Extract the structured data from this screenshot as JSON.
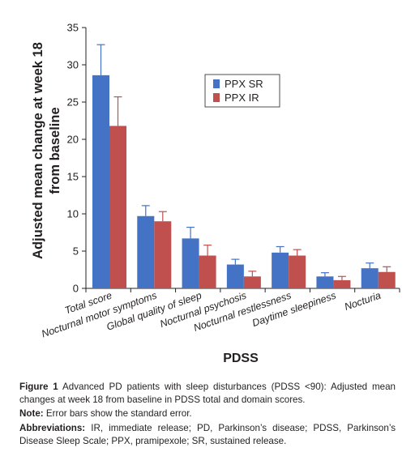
{
  "chart_data": {
    "type": "bar",
    "categories": [
      "Total score",
      "Nocturnal motor symptoms",
      "Global quality of sleep",
      "Nocturnal psychosis",
      "Nocturnal restlessness",
      "Daytime sleepiness",
      "Nocturia"
    ],
    "series": [
      {
        "name": "PPX SR",
        "color": "#4472c4",
        "values": [
          28.6,
          9.7,
          6.7,
          3.2,
          4.8,
          1.6,
          2.7
        ],
        "errors": [
          4.1,
          1.4,
          1.5,
          0.7,
          0.8,
          0.5,
          0.7
        ]
      },
      {
        "name": "PPX IR",
        "color": "#c0504d",
        "values": [
          21.8,
          9.0,
          4.4,
          1.6,
          4.4,
          1.1,
          2.2
        ],
        "errors": [
          3.9,
          1.3,
          1.4,
          0.7,
          0.8,
          0.5,
          0.7
        ]
      }
    ],
    "xlabel": "PDSS",
    "ylabel_lines": [
      "Adjusted mean change at week 18",
      "from baseline"
    ],
    "ylim": [
      0,
      35
    ],
    "yticks": [
      0,
      5,
      10,
      15,
      20,
      25,
      30,
      35
    ],
    "grid": false,
    "legend_position": "top-right",
    "error_bars": "standard error"
  },
  "caption": {
    "label": "Figure 1",
    "text": "Advanced PD patients with sleep disturbances (PDSS <90): Adjusted mean changes at week 18 from baseline in PDSS total and domain scores.",
    "note_label": "Note:",
    "note_text": "Error bars show the standard error.",
    "abbrev_label": "Abbreviations:",
    "abbrev_text": "IR, immediate release; PD, Parkinson’s disease; PDSS, Parkinson’s Disease Sleep Scale; PPX, pramipexole; SR, sustained release."
  }
}
